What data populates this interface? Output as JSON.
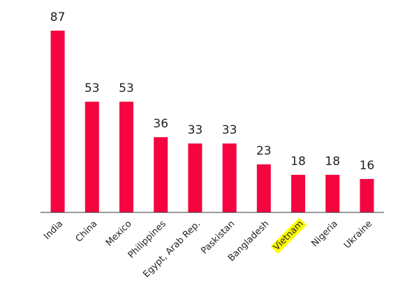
{
  "chart_data": {
    "type": "bar",
    "categories": [
      "India",
      "China",
      "Mexico",
      "Philippines",
      "Egypt, Arab Rep.",
      "Paskistan",
      "Bangladesh",
      "Vietnam",
      "Nigeria",
      "Ukraine"
    ],
    "values": [
      87,
      53,
      53,
      36,
      33,
      33,
      23,
      18,
      18,
      16
    ],
    "color": "#f5053f",
    "highlighted_category": "Vietnam",
    "highlight_color": "#ffff00"
  }
}
